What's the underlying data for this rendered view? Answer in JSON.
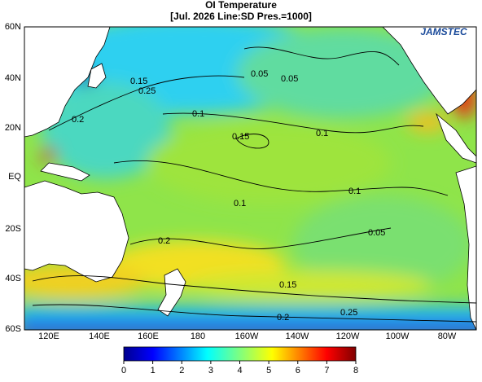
{
  "header": {
    "title": "OI Temperature",
    "subtitle": "[Jul. 2026  Line:SD  Pres.=1000]",
    "logo": "JAMSTEC"
  },
  "map": {
    "lat_labels": [
      "60N",
      "40N",
      "20N",
      "EQ",
      "20S",
      "40S",
      "60S"
    ],
    "lon_labels": [
      "120E",
      "140E",
      "160E",
      "180",
      "160W",
      "140W",
      "120W",
      "100W",
      "80W"
    ]
  },
  "contour_labels": [
    "0.15",
    "0.25",
    "0.2",
    "0.1",
    "0.05",
    "0.05",
    "0.15",
    "0.1",
    "0.1",
    "0.1",
    "0.05",
    "0.2",
    "0.15",
    "0.2",
    "0.25"
  ],
  "colorbar": {
    "range": [
      0,
      8
    ],
    "ticks": [
      0,
      1,
      2,
      3,
      4,
      5,
      6,
      7,
      8
    ]
  }
}
